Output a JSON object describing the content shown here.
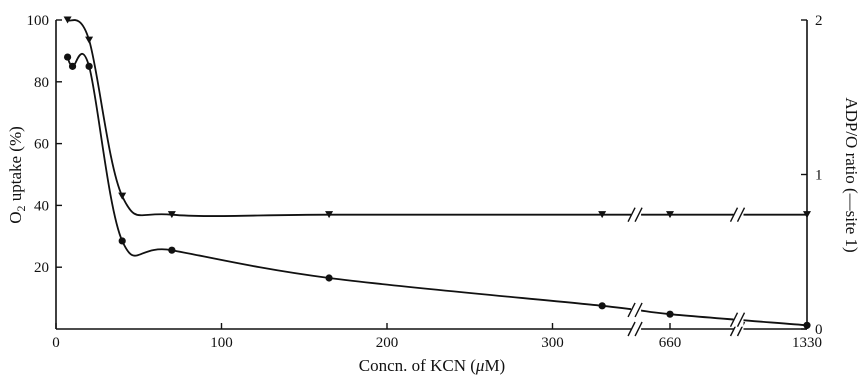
{
  "chart_data": {
    "type": "line",
    "xlabel_prefix": "Concn. of KCN (",
    "xlabel_unit": "μ",
    "xlabel_suffix": "M)",
    "ylabel_left_prefix": "O",
    "ylabel_left_sub": "2",
    "ylabel_left_suffix": " uptake (%)",
    "ylabel_right": "ADP/O ratio (—site 1)",
    "x_ticks": [
      {
        "label": "0",
        "value": 0
      },
      {
        "label": "100",
        "value": 100
      },
      {
        "label": "200",
        "value": 200
      },
      {
        "label": "300",
        "value": 300
      },
      {
        "label": "660",
        "value": 660
      },
      {
        "label": "1330",
        "value": 1330
      }
    ],
    "y_left_ticks": [
      {
        "label": "20",
        "value": 20
      },
      {
        "label": "40",
        "value": 40
      },
      {
        "label": "60",
        "value": 60
      },
      {
        "label": "80",
        "value": 80
      },
      {
        "label": "100",
        "value": 100
      }
    ],
    "y_right_ticks": [
      {
        "label": "0",
        "value": 0
      },
      {
        "label": "1",
        "value": 1
      },
      {
        "label": "2",
        "value": 2
      }
    ],
    "y_left_range": [
      0,
      100
    ],
    "y_right_range": [
      0,
      2
    ],
    "axis_breaks": [
      {
        "between": [
          330,
          660
        ]
      },
      {
        "between": [
          660,
          1330
        ]
      }
    ],
    "series": [
      {
        "axis": "left",
        "marker": "circle",
        "points": [
          {
            "x": 7,
            "y": 88
          },
          {
            "x": 10,
            "y": 85
          },
          {
            "x": 20,
            "y": 85
          },
          {
            "x": 40,
            "y": 28.5
          },
          {
            "x": 70,
            "y": 25.5
          },
          {
            "x": 165,
            "y": 16.5
          },
          {
            "x": 330,
            "y": 7.5
          },
          {
            "x": 660,
            "y": 4.8
          },
          {
            "x": 1330,
            "y": 1.2
          }
        ]
      },
      {
        "axis": "right",
        "marker": "triangle-down",
        "points": [
          {
            "x": 7,
            "y": 2.0
          },
          {
            "x": 20,
            "y": 1.87
          },
          {
            "x": 40,
            "y": 0.86
          },
          {
            "x": 70,
            "y": 0.74
          },
          {
            "x": 165,
            "y": 0.74
          },
          {
            "x": 330,
            "y": 0.74
          },
          {
            "x": 660,
            "y": 0.74
          },
          {
            "x": 1330,
            "y": 0.74
          }
        ]
      }
    ]
  }
}
